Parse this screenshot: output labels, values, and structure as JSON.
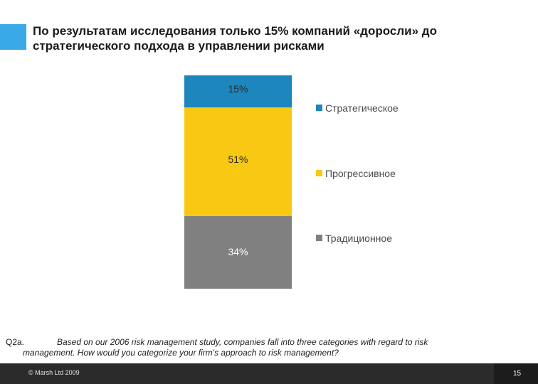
{
  "slide": {
    "title_line1": "По результатам исследования только 15% компаний «доросли» до",
    "title_line2": "стратегического подхода в управлении рисками"
  },
  "colors": {
    "accent": "#3aa9e8",
    "strategic": "#1c86bd",
    "progressive": "#f9c812",
    "traditional": "#808080"
  },
  "chart_data": {
    "type": "bar",
    "stacked": true,
    "title": "",
    "xlabel": "",
    "ylabel": "",
    "categories": [
      ""
    ],
    "series": [
      {
        "name": "Стратегическое",
        "values": [
          15
        ],
        "label": "15%",
        "color": "#1c86bd"
      },
      {
        "name": "Прогрессивное",
        "values": [
          51
        ],
        "label": "51%",
        "color": "#f9c812"
      },
      {
        "name": "Традиционное",
        "values": [
          34
        ],
        "label": "34%",
        "color": "#808080"
      }
    ],
    "ylim": [
      0,
      100
    ],
    "legend_position": "right"
  },
  "footnote": {
    "label": "Q2a.",
    "line1": "Based on our 2006 risk management study, companies fall into three categories with regard to risk",
    "line2": "management. How would you categorize your firm's approach to risk management?"
  },
  "footer": {
    "copyright": "© Marsh Ltd 2009",
    "page_number": "15"
  }
}
